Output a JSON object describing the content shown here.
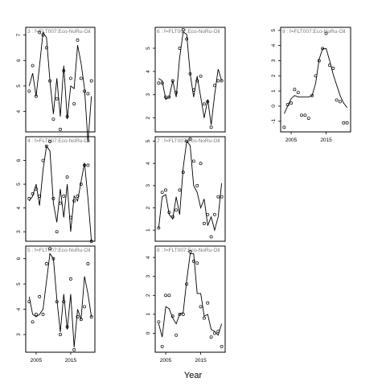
{
  "figure": {
    "xlabel": "Year"
  },
  "chart_data": [
    {
      "type": "scatter",
      "title": "3 : f=FLT007:Eco-NoRu-Oil",
      "xlim": [
        2002,
        2022
      ],
      "ylim": [
        3.2,
        7.3
      ],
      "yticks": [
        4,
        5,
        6,
        7
      ],
      "xticks": [],
      "series": [
        {
          "kind": "points",
          "x": [
            2003,
            2004,
            2005,
            2006,
            2007,
            2008,
            2009,
            2010,
            2011,
            2012,
            2013,
            2014,
            2015,
            2016,
            2017,
            2018,
            2019,
            2020,
            2021
          ],
          "y": [
            4.8,
            5.8,
            4.6,
            7.1,
            7.0,
            6.5,
            5.2,
            3.7,
            4.5,
            3.3,
            5.6,
            3.8,
            5.3,
            4.3,
            6.8,
            5.3,
            4.8,
            4.7,
            5.2
          ]
        },
        {
          "kind": "line",
          "x": [
            2003,
            2004,
            2005,
            2006,
            2007,
            2008,
            2009,
            2010,
            2011,
            2012,
            2013,
            2014,
            2015,
            2016,
            2017,
            2018,
            2019,
            2020,
            2021
          ],
          "y": [
            5.0,
            5.5,
            4.6,
            5.8,
            7.1,
            6.9,
            5.2,
            3.9,
            5.3,
            3.8,
            5.8,
            3.7,
            5.0,
            4.9,
            6.6,
            5.9,
            4.9,
            2.8,
            4.6
          ]
        }
      ]
    },
    {
      "type": "scatter",
      "title": "4 : f=FLT007:Eco-NoRu-Oil",
      "xlim": [
        2002,
        2022
      ],
      "ylim": [
        2.6,
        7.0
      ],
      "yticks": [
        3,
        4,
        5,
        6
      ],
      "xticks": [],
      "series": [
        {
          "kind": "points",
          "x": [
            2003,
            2004,
            2005,
            2006,
            2007,
            2008,
            2009,
            2010,
            2011,
            2012,
            2013,
            2014,
            2015,
            2016,
            2017,
            2018,
            2019,
            2020,
            2021
          ],
          "y": [
            4.4,
            4.6,
            4.8,
            4.5,
            6.0,
            6.6,
            6.8,
            4.4,
            3.0,
            4.2,
            4.5,
            5.3,
            3.6,
            4.3,
            4.5,
            5.0,
            5.8,
            5.8,
            2.6
          ]
        },
        {
          "kind": "line",
          "x": [
            2003,
            2004,
            2005,
            2006,
            2007,
            2008,
            2009,
            2010,
            2011,
            2012,
            2013,
            2014,
            2015,
            2016,
            2017,
            2018,
            2019,
            2020,
            2021
          ],
          "y": [
            4.3,
            4.5,
            5.0,
            4.1,
            5.6,
            6.6,
            6.4,
            4.2,
            3.4,
            4.8,
            3.6,
            5.0,
            3.0,
            4.5,
            4.3,
            5.1,
            5.9,
            4.4,
            2.6
          ]
        }
      ]
    },
    {
      "type": "scatter",
      "title": "5 : f=FLT007:Eco-NoRu-Oil",
      "xlim": [
        2002,
        2022
      ],
      "ylim": [
        2.3,
        6.5
      ],
      "yticks": [
        3,
        4,
        5,
        6
      ],
      "xticks": [
        2005,
        2015
      ],
      "series": [
        {
          "kind": "points",
          "x": [
            2003,
            2004,
            2005,
            2006,
            2007,
            2008,
            2009,
            2010,
            2011,
            2012,
            2013,
            2014,
            2015,
            2016,
            2017,
            2018,
            2019,
            2020,
            2021
          ],
          "y": [
            4.3,
            3.5,
            3.8,
            4.5,
            3.8,
            5.8,
            6.4,
            6.0,
            4.3,
            3.0,
            4.3,
            3.3,
            5.2,
            2.4,
            3.7,
            3.6,
            4.1,
            5.8,
            3.7
          ]
        },
        {
          "kind": "line",
          "x": [
            2003,
            2004,
            2005,
            2006,
            2007,
            2008,
            2009,
            2010,
            2011,
            2012,
            2013,
            2014,
            2015,
            2016,
            2017,
            2018,
            2019,
            2020,
            2021
          ],
          "y": [
            4.5,
            3.8,
            3.7,
            3.8,
            4.0,
            5.1,
            6.2,
            6.0,
            4.4,
            3.1,
            4.6,
            3.2,
            4.6,
            2.5,
            4.0,
            3.6,
            5.3,
            4.6,
            3.7
          ]
        }
      ]
    },
    {
      "type": "scatter",
      "title": "6 : f=FLT007:Eco-NoRu-Oil",
      "xlim": [
        2002,
        2022
      ],
      "ylim": [
        1.4,
        5.9
      ],
      "yticks": [
        2,
        3,
        4,
        5
      ],
      "xticks": [],
      "series": [
        {
          "kind": "points",
          "x": [
            2003,
            2004,
            2005,
            2006,
            2007,
            2008,
            2009,
            2010,
            2011,
            2012,
            2013,
            2014,
            2015,
            2016,
            2017,
            2018,
            2019,
            2020,
            2021
          ],
          "y": [
            3.5,
            3.5,
            2.9,
            2.9,
            3.6,
            3.1,
            5.0,
            5.8,
            5.4,
            3.9,
            3.2,
            3.6,
            3.8,
            2.6,
            2.7,
            1.6,
            3.4,
            3.6,
            3.6
          ]
        },
        {
          "kind": "line",
          "x": [
            2003,
            2004,
            2005,
            2006,
            2007,
            2008,
            2009,
            2010,
            2011,
            2012,
            2013,
            2014,
            2015,
            2016,
            2017,
            2018,
            2019,
            2020,
            2021
          ],
          "y": [
            3.7,
            3.6,
            2.8,
            2.9,
            3.6,
            2.9,
            4.6,
            5.7,
            5.6,
            3.9,
            2.9,
            3.8,
            2.9,
            2.0,
            2.8,
            1.7,
            3.0,
            4.1,
            3.6
          ]
        }
      ]
    },
    {
      "type": "scatter",
      "title": "7 : f=FLT007:Eco-NoRu-Oil",
      "xlim": [
        2002,
        2022
      ],
      "ylim": [
        0.5,
        5.2
      ],
      "yticks": [
        1,
        2,
        3,
        4,
        5
      ],
      "xticks": [],
      "series": [
        {
          "kind": "points",
          "x": [
            2003,
            2004,
            2005,
            2006,
            2007,
            2008,
            2009,
            2010,
            2011,
            2012,
            2013,
            2014,
            2015,
            2016,
            2017,
            2018,
            2019,
            2020,
            2021
          ],
          "y": [
            1.1,
            2.7,
            2.8,
            1.8,
            1.6,
            1.9,
            2.8,
            3.6,
            5.0,
            5.1,
            4.1,
            3.0,
            4.0,
            1.3,
            1.7,
            0.7,
            1.7,
            2.5,
            2.5
          ]
        },
        {
          "kind": "line",
          "x": [
            2003,
            2004,
            2005,
            2006,
            2007,
            2008,
            2009,
            2010,
            2011,
            2012,
            2013,
            2014,
            2015,
            2016,
            2017,
            2018,
            2019,
            2020,
            2021
          ],
          "y": [
            1.1,
            2.5,
            2.6,
            1.7,
            1.5,
            2.5,
            1.7,
            3.8,
            5.0,
            4.8,
            3.0,
            2.7,
            2.0,
            2.4,
            1.2,
            1.6,
            1.0,
            1.6,
            3.1
          ]
        }
      ]
    },
    {
      "type": "scatter",
      "title": "8 : f=FLT007:Eco-NoRu-Oil",
      "xlim": [
        2002,
        2022
      ],
      "ylim": [
        -1.0,
        4.6
      ],
      "yticks": [
        0,
        1,
        2,
        3,
        4
      ],
      "xticks": [
        2005,
        2015
      ],
      "series": [
        {
          "kind": "points",
          "x": [
            2003,
            2004,
            2005,
            2006,
            2007,
            2008,
            2009,
            2010,
            2011,
            2012,
            2013,
            2014,
            2015,
            2016,
            2017,
            2018,
            2019,
            2020,
            2021
          ],
          "y": [
            0.6,
            -0.7,
            2.0,
            2.0,
            0.9,
            -0.1,
            1.0,
            1.0,
            2.6,
            4.3,
            3.8,
            3.7,
            1.4,
            0.8,
            1.6,
            -0.2,
            0.0,
            0.1,
            -0.7
          ]
        },
        {
          "kind": "line",
          "x": [
            2003,
            2004,
            2005,
            2006,
            2007,
            2008,
            2009,
            2010,
            2011,
            2012,
            2013,
            2014,
            2015,
            2016,
            2017,
            2018,
            2019,
            2020,
            2021
          ],
          "y": [
            0.5,
            -0.2,
            1.4,
            1.3,
            0.8,
            0.5,
            1.0,
            1.1,
            2.8,
            4.2,
            4.2,
            2.1,
            2.1,
            0.9,
            1.0,
            0.2,
            0.1,
            -0.1,
            0.5
          ]
        }
      ]
    },
    {
      "type": "scatter",
      "title": "9 : f=FLT007:Eco-NoRu-Oil",
      "xlim": [
        2002,
        2022
      ],
      "ylim": [
        -1.7,
        5.2
      ],
      "yticks": [
        -1,
        0,
        1,
        2,
        3,
        4,
        5
      ],
      "xticks": [
        2005,
        2015
      ],
      "series": [
        {
          "kind": "points",
          "x": [
            2003,
            2004,
            2005,
            2006,
            2007,
            2008,
            2009,
            2010,
            2011,
            2012,
            2013,
            2014,
            2015,
            2016,
            2017,
            2018,
            2019,
            2020,
            2021
          ],
          "y": [
            -1.4,
            0.1,
            0.2,
            1.1,
            0.9,
            -0.6,
            -0.6,
            -0.8,
            0.7,
            2.0,
            3.0,
            3.8,
            4.8,
            2.7,
            2.5,
            0.4,
            0.3,
            -1.1,
            -1.1
          ]
        },
        {
          "kind": "line",
          "x": [
            2003,
            2004,
            2005,
            2006,
            2007,
            2008,
            2009,
            2010,
            2011,
            2012,
            2013,
            2014,
            2015,
            2016,
            2017,
            2018,
            2019,
            2020,
            2021
          ],
          "y": [
            -0.5,
            0.0,
            0.5,
            0.7,
            0.6,
            0.6,
            0.6,
            0.6,
            0.7,
            1.5,
            3.1,
            3.8,
            3.8,
            3.0,
            2.1,
            1.4,
            0.7,
            0.2,
            -0.1
          ]
        }
      ]
    }
  ]
}
